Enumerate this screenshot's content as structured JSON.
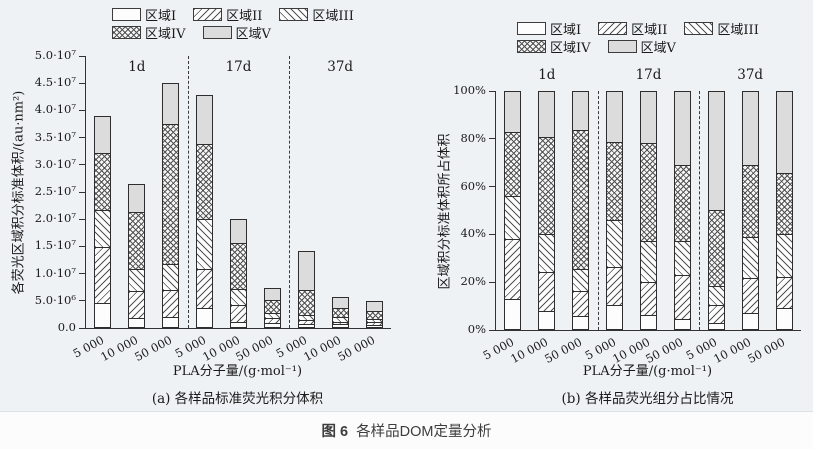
{
  "figure_caption": {
    "prefix": "图 6",
    "title": "各样品DOM定量分析"
  },
  "legend_items": [
    {
      "label": "区域I",
      "pattern": "none"
    },
    {
      "label": "区域II",
      "pattern": "fwd"
    },
    {
      "label": "区域III",
      "pattern": "back"
    },
    {
      "label": "区域IV",
      "pattern": "cross"
    },
    {
      "label": "区域V",
      "pattern": "solid"
    }
  ],
  "colors": {
    "panel_bg": "#eef2f4",
    "axis": "#333333",
    "hatch": "#525252",
    "solid_fill": "#dcdcdc",
    "caption_text": "#3d3d3d"
  },
  "chart_data": [
    {
      "id": "a",
      "type": "bar",
      "stacked": true,
      "subtitle": "(a) 各样品标准荧光积分体积",
      "xlabel": "PLA分子量/(g·mol⁻¹)",
      "ylabel": "各荧光区域积分标准体积/(au·nm²)",
      "value_unit": "×10⁶ au·nm²",
      "ylim": [
        0,
        50
      ],
      "ytick_labels": [
        "0.0",
        "5.0·10⁶",
        "1.0·10⁷",
        "1.5·10⁷",
        "2.0·10⁷",
        "2.5·10⁷",
        "3.0·10⁷",
        "3.5·10⁷",
        "4.0·10⁷",
        "4.5·10⁷",
        "5.0·10⁷"
      ],
      "group_labels": [
        "1d",
        "17d",
        "37d"
      ],
      "categories": [
        "5 000",
        "10 000",
        "50 000",
        "5 000",
        "10 000",
        "50 000",
        "5 000",
        "10 000",
        "50 000"
      ],
      "series": [
        {
          "name": "区域I",
          "values": [
            4.5,
            1.6,
            1.8,
            3.5,
            1.0,
            0.8,
            0.6,
            0.5,
            0.4
          ]
        },
        {
          "name": "区域II",
          "values": [
            10.3,
            5.1,
            5.0,
            7.3,
            3.2,
            1.0,
            0.8,
            0.5,
            0.5
          ]
        },
        {
          "name": "区域III",
          "values": [
            6.9,
            4.1,
            4.9,
            9.2,
            2.9,
            0.9,
            0.9,
            0.9,
            0.7
          ]
        },
        {
          "name": "区域IV",
          "values": [
            10.6,
            10.7,
            25.8,
            13.9,
            8.6,
            2.5,
            4.6,
            1.8,
            1.5
          ]
        },
        {
          "name": "区域V",
          "values": [
            6.7,
            5.0,
            7.5,
            9.0,
            4.3,
            2.2,
            7.2,
            2.0,
            1.8
          ]
        }
      ]
    },
    {
      "id": "b",
      "type": "bar",
      "stacked": true,
      "subtitle": "(b) 各样品荧光组分占比情况",
      "xlabel": "PLA分子量/(g·mol⁻¹)",
      "ylabel": "区域积分标准体积所占体积",
      "value_unit": "%",
      "ylim": [
        0,
        100
      ],
      "ytick_labels": [
        "0%",
        "20%",
        "40%",
        "60%",
        "80%",
        "100%"
      ],
      "group_labels": [
        "1d",
        "17d",
        "37d"
      ],
      "categories": [
        "5 000",
        "10 000",
        "50 000",
        "5 000",
        "10 000",
        "50 000",
        "5 000",
        "10 000",
        "50 000"
      ],
      "series": [
        {
          "name": "区域I",
          "values": [
            12.5,
            7.7,
            5.6,
            10.0,
            6.0,
            4.2,
            2.4,
            6.6,
            8.8
          ]
        },
        {
          "name": "区域II",
          "values": [
            25.5,
            16.3,
            10.4,
            16.0,
            14.0,
            18.5,
            7.8,
            15.0,
            13.1
          ]
        },
        {
          "name": "区域III",
          "values": [
            18.3,
            16.0,
            9.5,
            20.0,
            17.0,
            14.5,
            7.9,
            17.4,
            18.1
          ]
        },
        {
          "name": "区域IV",
          "values": [
            26.7,
            41.0,
            58.5,
            33.0,
            41.5,
            32.1,
            32.1,
            30.0,
            26.0
          ]
        },
        {
          "name": "区域V",
          "values": [
            17.0,
            19.0,
            16.0,
            21.0,
            21.5,
            30.7,
            49.8,
            31.0,
            34.0
          ]
        }
      ]
    }
  ]
}
